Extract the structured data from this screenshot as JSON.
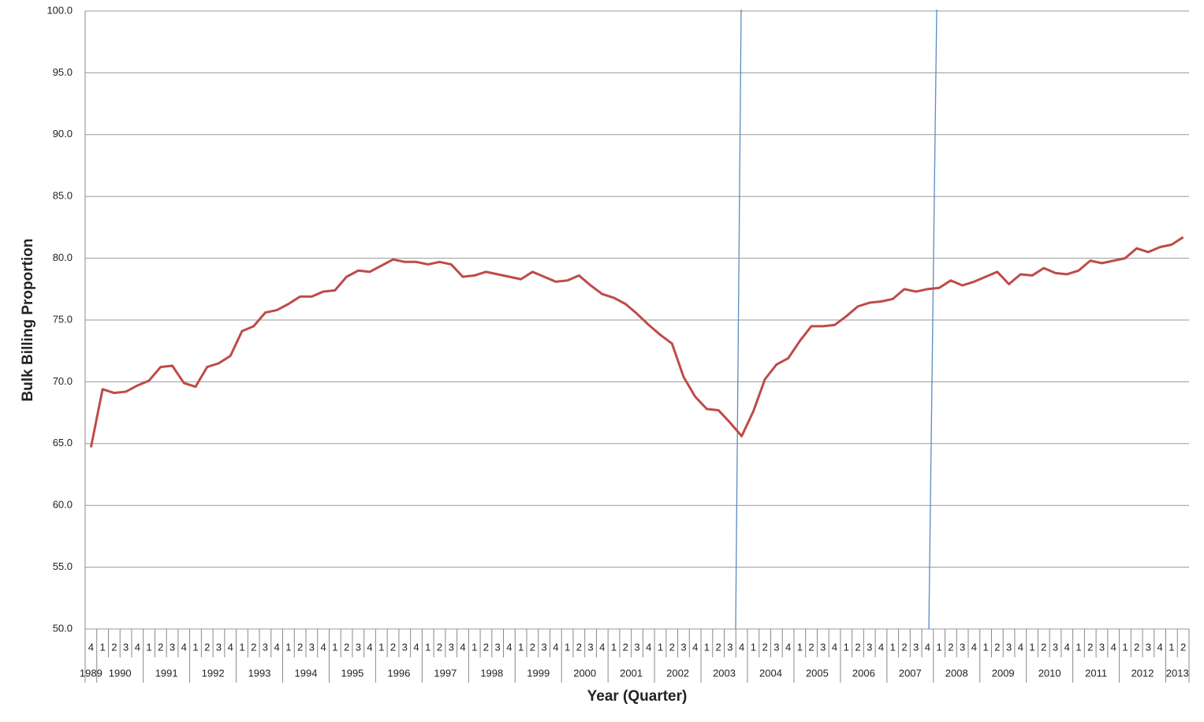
{
  "chart_data": {
    "type": "line",
    "y_label": "Bulk Billing Proportion",
    "x_label": "Year (Quarter)",
    "color": "#be4b48",
    "grid": true,
    "ylim": [
      50,
      100
    ],
    "yticks": [
      {
        "value": 50,
        "label": "50.0"
      },
      {
        "value": 55,
        "label": "55.0"
      },
      {
        "value": 60,
        "label": "60.0"
      },
      {
        "value": 65,
        "label": "65.0"
      },
      {
        "value": 70,
        "label": "70.0"
      },
      {
        "value": 75,
        "label": "75.0"
      },
      {
        "value": 80,
        "label": "80.0"
      },
      {
        "value": 85,
        "label": "85.0"
      },
      {
        "value": 90,
        "label": "90.0"
      },
      {
        "value": 95,
        "label": "95.0"
      },
      {
        "value": 100,
        "label": "100.0"
      }
    ],
    "years": [
      "1989",
      "1990",
      "1991",
      "1992",
      "1993",
      "1994",
      "1995",
      "1996",
      "1997",
      "1998",
      "1999",
      "2000",
      "2001",
      "2002",
      "2003",
      "2004",
      "2005",
      "2006",
      "2007",
      "2008",
      "2009",
      "2010",
      "2011",
      "2012",
      "2013"
    ],
    "categories": [
      "4",
      "1",
      "2",
      "3",
      "4",
      "1",
      "2",
      "3",
      "4",
      "1",
      "2",
      "3",
      "4",
      "1",
      "2",
      "3",
      "4",
      "1",
      "2",
      "3",
      "4",
      "1",
      "2",
      "3",
      "4",
      "1",
      "2",
      "3",
      "4",
      "1",
      "2",
      "3",
      "4",
      "1",
      "2",
      "3",
      "4",
      "1",
      "2",
      "3",
      "4",
      "1",
      "2",
      "3",
      "4",
      "1",
      "2",
      "3",
      "4",
      "1",
      "2",
      "3",
      "4",
      "1",
      "2",
      "3",
      "4",
      "1",
      "2",
      "3",
      "4",
      "1",
      "2",
      "3",
      "4",
      "1",
      "2",
      "3",
      "4",
      "1",
      "2",
      "3",
      "4",
      "1",
      "2",
      "3",
      "4",
      "1",
      "2",
      "3",
      "4",
      "1",
      "2",
      "3",
      "4",
      "1",
      "2",
      "3",
      "4",
      "1",
      "2",
      "3",
      "4",
      "1",
      "2"
    ],
    "values": [
      64.7,
      69.4,
      69.1,
      69.2,
      69.7,
      70.1,
      71.2,
      71.3,
      69.9,
      69.6,
      71.2,
      71.5,
      72.1,
      74.1,
      74.5,
      75.6,
      75.8,
      76.3,
      76.9,
      76.9,
      77.3,
      77.4,
      78.5,
      79.0,
      78.9,
      79.4,
      79.9,
      79.7,
      79.7,
      79.5,
      79.7,
      79.5,
      78.5,
      78.6,
      78.9,
      78.7,
      78.5,
      78.3,
      78.9,
      78.5,
      78.1,
      78.2,
      78.6,
      77.8,
      77.1,
      76.8,
      76.3,
      75.5,
      74.6,
      73.8,
      73.1,
      70.4,
      68.8,
      67.8,
      67.7,
      66.7,
      65.6,
      67.6,
      70.2,
      71.4,
      71.9,
      73.3,
      74.5,
      74.5,
      74.6,
      75.3,
      76.1,
      76.4,
      76.5,
      76.7,
      77.5,
      77.3,
      77.5,
      77.6,
      78.2,
      77.8,
      78.1,
      78.5,
      78.9,
      77.9,
      78.7,
      78.6,
      79.2,
      78.8,
      78.7,
      79.0,
      79.8,
      79.6,
      79.8,
      80.0,
      80.8,
      80.5,
      80.9,
      81.1,
      81.7
    ]
  }
}
